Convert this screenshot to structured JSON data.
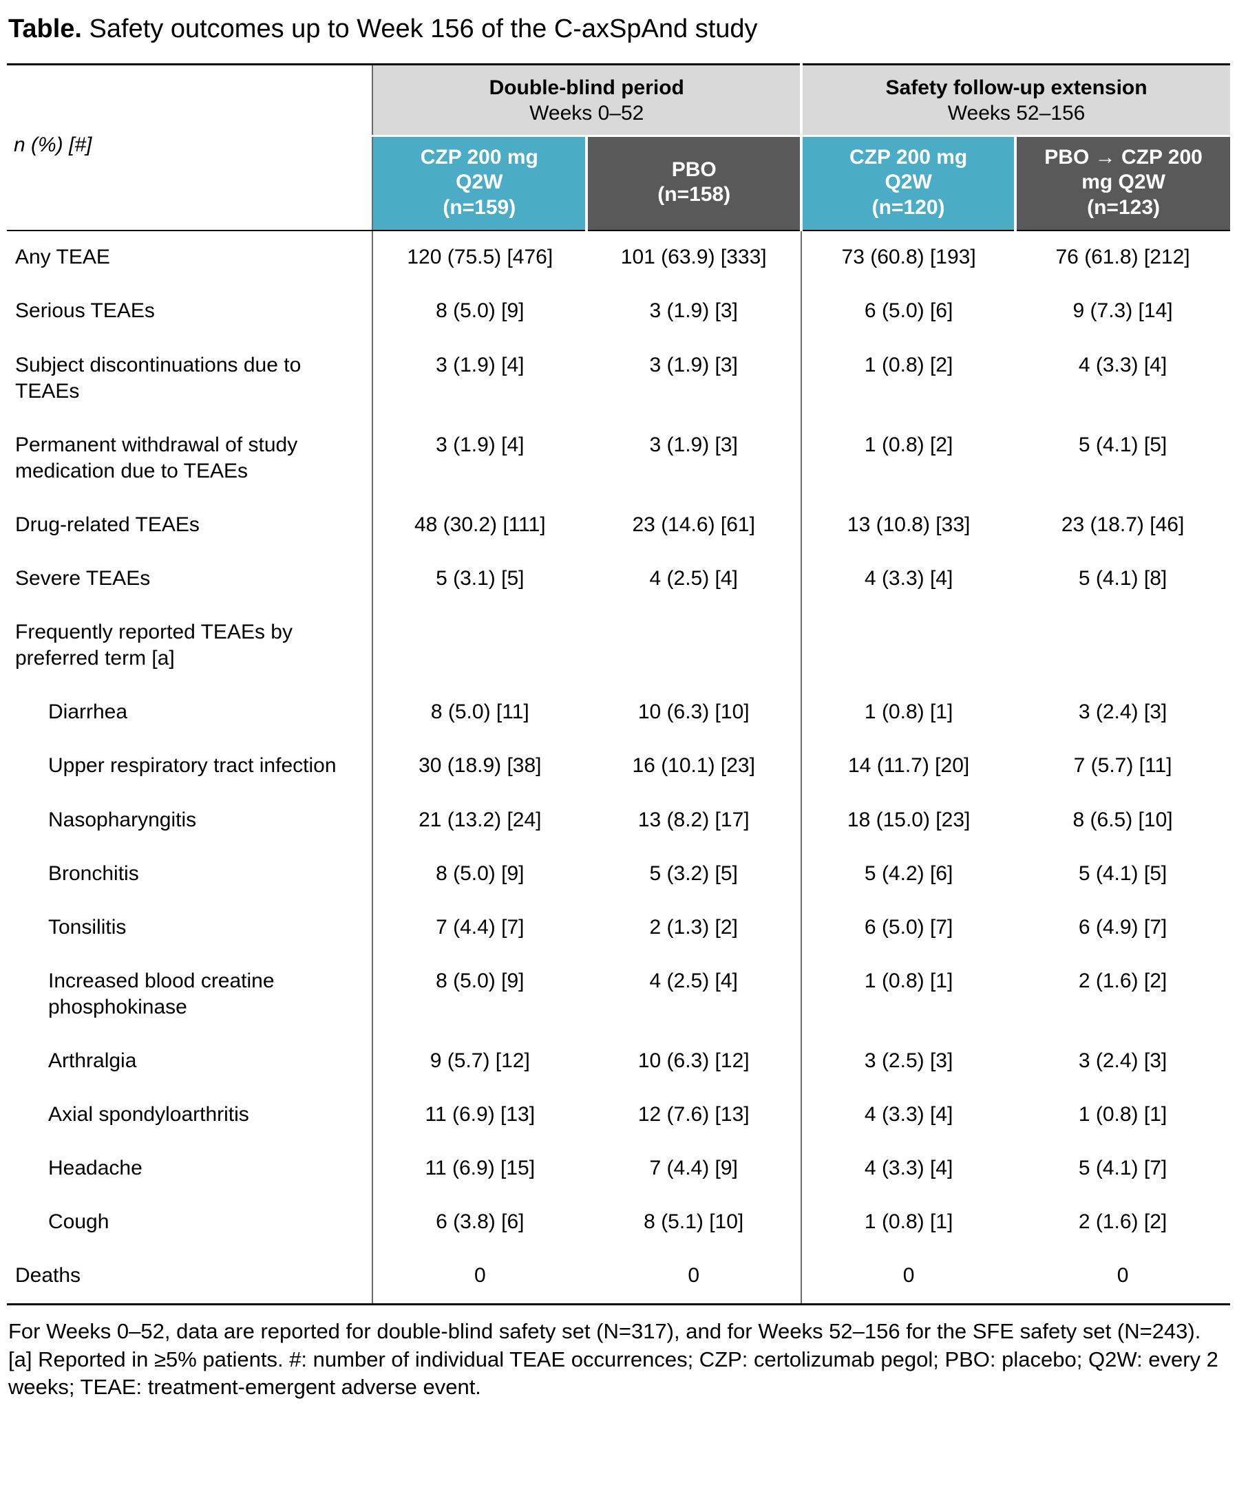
{
  "title": {
    "prefix": "Table.",
    "rest": " Safety outcomes up to Week 156 of the C-axSpAnd study"
  },
  "table": {
    "corner_label": "n (%) [#]",
    "groups": [
      {
        "title": "Double-blind period",
        "subtitle": "Weeks 0–52"
      },
      {
        "title": "Safety follow-up extension",
        "subtitle": "Weeks 52–156"
      }
    ],
    "columns": [
      {
        "label": "CZP 200 mg\nQ2W\n(n=159)"
      },
      {
        "label": "PBO\n(n=158)"
      },
      {
        "label": "CZP 200 mg\nQ2W\n(n=120)"
      },
      {
        "label": "PBO → CZP 200\nmg Q2W\n(n=123)"
      }
    ],
    "rows": [
      {
        "label": "Any TEAE",
        "indent": false,
        "values": [
          "120 (75.5) [476]",
          "101 (63.9) [333]",
          "73 (60.8) [193]",
          "76 (61.8) [212]"
        ]
      },
      {
        "label": "Serious TEAEs",
        "indent": false,
        "values": [
          "8 (5.0) [9]",
          "3 (1.9) [3]",
          "6 (5.0) [6]",
          "9 (7.3) [14]"
        ]
      },
      {
        "label": "Subject discontinuations due to TEAEs",
        "indent": false,
        "values": [
          "3 (1.9) [4]",
          "3 (1.9) [3]",
          "1 (0.8) [2]",
          "4 (3.3) [4]"
        ]
      },
      {
        "label": "Permanent withdrawal of study medication due to TEAEs",
        "indent": false,
        "values": [
          "3 (1.9) [4]",
          "3 (1.9) [3]",
          "1 (0.8) [2]",
          "5 (4.1) [5]"
        ]
      },
      {
        "label": "Drug-related TEAEs",
        "indent": false,
        "values": [
          "48 (30.2) [111]",
          "23 (14.6) [61]",
          "13 (10.8) [33]",
          "23 (18.7) [46]"
        ]
      },
      {
        "label": "Severe TEAEs",
        "indent": false,
        "values": [
          "5 (3.1) [5]",
          "4 (2.5) [4]",
          "4 (3.3) [4]",
          "5 (4.1) [8]"
        ]
      },
      {
        "label": "Frequently reported TEAEs by preferred term [a]",
        "indent": false,
        "values": [
          "",
          "",
          "",
          ""
        ]
      },
      {
        "label": "Diarrhea",
        "indent": true,
        "values": [
          "8 (5.0) [11]",
          "10 (6.3) [10]",
          "1 (0.8) [1]",
          "3 (2.4) [3]"
        ]
      },
      {
        "label": "Upper respiratory tract infection",
        "indent": true,
        "values": [
          "30 (18.9) [38]",
          "16 (10.1) [23]",
          "14 (11.7) [20]",
          "7 (5.7) [11]"
        ]
      },
      {
        "label": "Nasopharyngitis",
        "indent": true,
        "values": [
          "21 (13.2) [24]",
          "13 (8.2) [17]",
          "18 (15.0) [23]",
          "8 (6.5) [10]"
        ]
      },
      {
        "label": "Bronchitis",
        "indent": true,
        "values": [
          "8 (5.0) [9]",
          "5 (3.2) [5]",
          "5 (4.2) [6]",
          "5 (4.1) [5]"
        ]
      },
      {
        "label": "Tonsilitis",
        "indent": true,
        "values": [
          "7 (4.4) [7]",
          "2 (1.3) [2]",
          "6 (5.0) [7]",
          "6 (4.9) [7]"
        ]
      },
      {
        "label": "Increased blood creatine phosphokinase",
        "indent": true,
        "values": [
          "8 (5.0) [9]",
          "4 (2.5) [4]",
          "1 (0.8) [1]",
          "2 (1.6) [2]"
        ]
      },
      {
        "label": "Arthralgia",
        "indent": true,
        "values": [
          "9 (5.7) [12]",
          "10 (6.3) [12]",
          "3 (2.5) [3]",
          "3 (2.4) [3]"
        ]
      },
      {
        "label": "Axial spondyloarthritis",
        "indent": true,
        "values": [
          "11 (6.9) [13]",
          "12 (7.6) [13]",
          "4 (3.3) [4]",
          "1 (0.8) [1]"
        ]
      },
      {
        "label": "Headache",
        "indent": true,
        "values": [
          "11 (6.9) [15]",
          "7 (4.4) [9]",
          "4 (3.3) [4]",
          "5 (4.1) [7]"
        ]
      },
      {
        "label": "Cough",
        "indent": true,
        "values": [
          "6 (3.8) [6]",
          "8 (5.1) [10]",
          "1 (0.8) [1]",
          "2 (1.6) [2]"
        ]
      },
      {
        "label": "Deaths",
        "indent": false,
        "values": [
          "0",
          "0",
          "0",
          "0"
        ]
      }
    ]
  },
  "footnote": "For Weeks 0–52, data are reported for double-blind safety set (N=317), and for Weeks 52–156 for the SFE safety set (N=243). [a] Reported in ≥5% patients. #: number of individual TEAE occurrences; CZP: certolizumab pegol; PBO: placebo; Q2W: every 2 weeks; TEAE: treatment-emergent adverse event.",
  "colors": {
    "accent_blue": "#4BACC6",
    "header_gray": "#595959",
    "group_bg": "#D9D9D9",
    "line_gray": "#6b6b6b"
  }
}
